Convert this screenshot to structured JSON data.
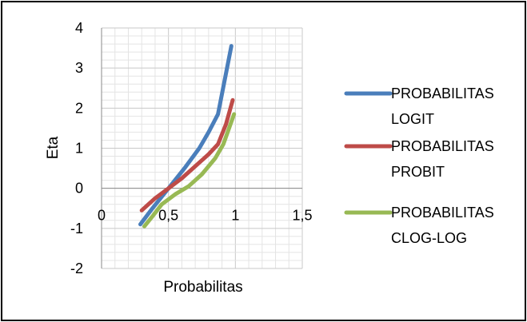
{
  "chart_data": {
    "type": "line",
    "xlabel": "Probabilitas",
    "ylabel": "Eta",
    "xlim": [
      0,
      1.5
    ],
    "ylim": [
      -2,
      4
    ],
    "x_ticks": [
      "0",
      "0,5",
      "1",
      "1,5"
    ],
    "y_ticks": [
      "-2",
      "-1",
      "0",
      "1",
      "2",
      "3",
      "4"
    ],
    "grid": true,
    "legend_position": "right",
    "series": [
      {
        "name": "PROBABILITAS LOGIT",
        "color": "#4a7ebb",
        "points": [
          [
            0.29,
            -0.9
          ],
          [
            0.38,
            -0.5
          ],
          [
            0.5,
            0.0
          ],
          [
            0.62,
            0.5
          ],
          [
            0.73,
            1.0
          ],
          [
            0.8,
            1.4
          ],
          [
            0.87,
            1.85
          ],
          [
            0.97,
            3.55
          ]
        ]
      },
      {
        "name": "PROBABILITAS PROBIT",
        "color": "#be4b48",
        "points": [
          [
            0.3,
            -0.55
          ],
          [
            0.4,
            -0.25
          ],
          [
            0.5,
            0.0
          ],
          [
            0.6,
            0.25
          ],
          [
            0.7,
            0.55
          ],
          [
            0.8,
            0.85
          ],
          [
            0.87,
            1.1
          ],
          [
            0.93,
            1.6
          ],
          [
            0.98,
            2.2
          ]
        ]
      },
      {
        "name": "PROBABILITAS CLOG-LOG",
        "color": "#98b954",
        "points": [
          [
            0.32,
            -0.95
          ],
          [
            0.38,
            -0.7
          ],
          [
            0.45,
            -0.4
          ],
          [
            0.55,
            -0.15
          ],
          [
            0.65,
            0.05
          ],
          [
            0.75,
            0.35
          ],
          [
            0.85,
            0.75
          ],
          [
            0.91,
            1.1
          ],
          [
            0.99,
            1.85
          ]
        ]
      }
    ]
  }
}
